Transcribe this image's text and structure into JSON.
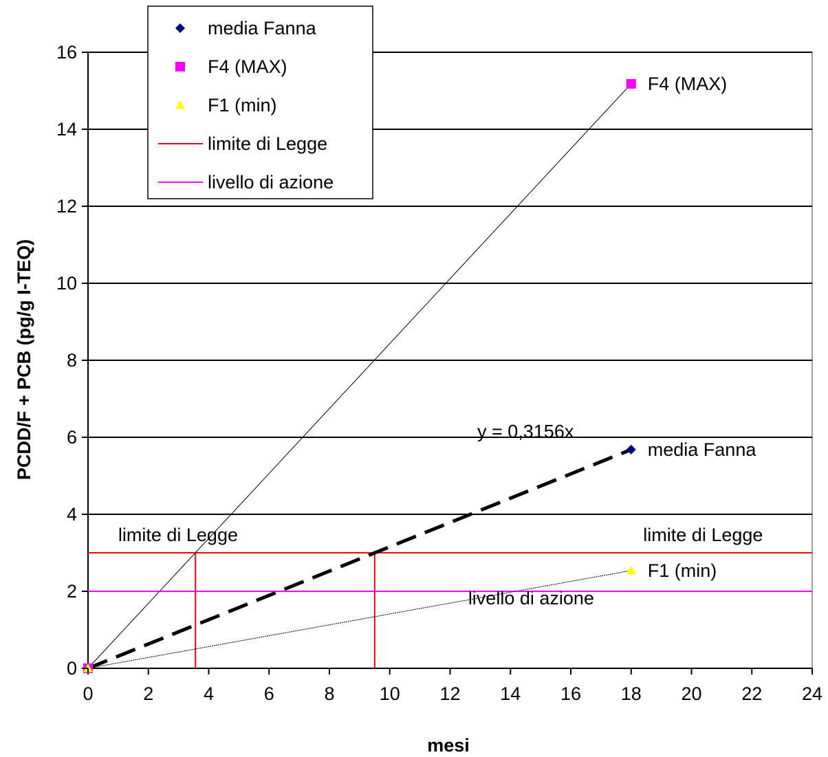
{
  "chart_data": {
    "type": "scatter",
    "xlabel": "mesi",
    "ylabel": "PCDD/F + PCB (pg/g I-TEQ)",
    "xlim": [
      0,
      24
    ],
    "ylim": [
      0,
      16
    ],
    "xticks": [
      0,
      2,
      4,
      6,
      8,
      10,
      12,
      14,
      16,
      18,
      20,
      22,
      24
    ],
    "yticks": [
      0,
      2,
      4,
      6,
      8,
      10,
      12,
      14,
      16
    ],
    "grid": "horizontal",
    "legend_position": "top-left",
    "series": [
      {
        "name": "media Fanna",
        "marker": "diamond",
        "color": "#000080",
        "points": [
          {
            "x": 0,
            "y": 0
          },
          {
            "x": 18,
            "y": 5.68
          }
        ],
        "point_label": "media Fanna"
      },
      {
        "name": "F4 (MAX)",
        "marker": "square",
        "color": "#ff00ff",
        "points": [
          {
            "x": 0,
            "y": 0
          },
          {
            "x": 18,
            "y": 15.18
          }
        ],
        "point_label": "F4 (MAX)"
      },
      {
        "name": "F1 (min)",
        "marker": "triangle",
        "color": "#ffff00",
        "points": [
          {
            "x": 0,
            "y": 0
          },
          {
            "x": 18,
            "y": 2.54
          }
        ],
        "point_label": "F1 (min)"
      },
      {
        "name": "limite di Legge",
        "type": "hline",
        "y": 3,
        "color": "#ff0000",
        "label": "limite di Legge"
      },
      {
        "name": "livello di azione",
        "type": "hline",
        "y": 2,
        "color": "#ff00ff",
        "label": "livello di azione"
      }
    ],
    "trendlines": [
      {
        "series": "media Fanna",
        "slope": 0.3156,
        "style": "dashed",
        "color": "#000000",
        "x_end": 18
      },
      {
        "series": "F4 (MAX)",
        "style": "thin",
        "color": "#000000",
        "x_end": 18
      },
      {
        "series": "F1 (min)",
        "style": "thin-dotted",
        "color": "#000000",
        "x_end": 18
      }
    ],
    "equation_label": "y = 0,3156x",
    "threshold_crossings": [
      {
        "x": 3.56,
        "y": 3,
        "color": "#ff0000"
      },
      {
        "x": 9.5,
        "y": 3,
        "color": "#ff0000"
      }
    ],
    "annotations": [
      {
        "text": "limite di Legge",
        "x": 1.0,
        "y": 3.2
      },
      {
        "text": "limite di Legge",
        "x": 18.4,
        "y": 3.2
      },
      {
        "text": "livello di azione",
        "x": 12.6,
        "y": 1.55
      }
    ]
  }
}
